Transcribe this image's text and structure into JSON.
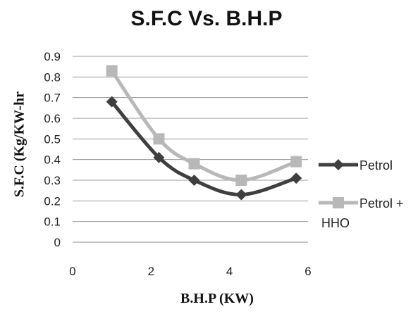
{
  "chart_data": {
    "type": "line",
    "title": "S.F.C Vs. B.H.P",
    "xlabel": "B.H.P (KW)",
    "ylabel": "S.F.C (Kg/KW-hr",
    "xlim": [
      0,
      6
    ],
    "ylim": [
      0,
      0.9
    ],
    "xticks": [
      "0",
      "2",
      "4",
      "6"
    ],
    "yticks": [
      "0",
      "0.1",
      "0.2",
      "0.3",
      "0.4",
      "0.5",
      "0.6",
      "0.7",
      "0.8",
      "0.9"
    ],
    "grid": "horizontal",
    "legend_position": "right",
    "series": [
      {
        "name": "Petrol",
        "color": "#3f3f3f",
        "marker": "diamond",
        "points": [
          [
            1.0,
            0.68
          ],
          [
            2.2,
            0.41
          ],
          [
            3.1,
            0.3
          ],
          [
            4.3,
            0.23
          ],
          [
            5.7,
            0.31
          ]
        ]
      },
      {
        "name": "Petrol + HHO",
        "color": "#b8b8b8",
        "marker": "square",
        "points": [
          [
            1.0,
            0.83
          ],
          [
            2.2,
            0.5
          ],
          [
            3.1,
            0.38
          ],
          [
            4.3,
            0.3
          ],
          [
            5.7,
            0.39
          ]
        ]
      }
    ]
  }
}
